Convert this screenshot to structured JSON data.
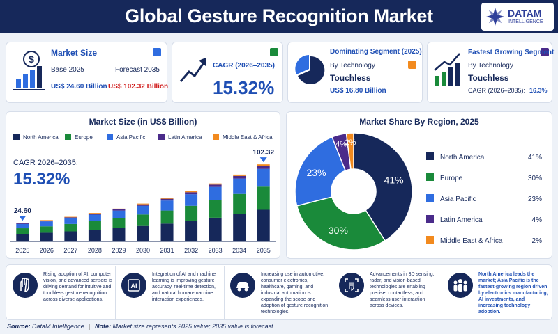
{
  "header": {
    "title": "Global Gesture Recognition Market",
    "logo_name": "DATAM",
    "logo_sub": "INTELLIGENCE"
  },
  "cards": [
    {
      "title": "Market Size",
      "base_label": "Base 2025",
      "forecast_label": "Forecast 2035",
      "base_value": "US$ 24.60 Billion",
      "forecast_value": "US$ 102.32 Billion"
    },
    {
      "title": "CAGR (2026–2035)",
      "value": "15.32%"
    },
    {
      "title": "Dominating Segment (2025)",
      "subtitle": "By Technology",
      "segment": "Touchless",
      "value": "US$ 16.80 Billion"
    },
    {
      "title": "Fastest Growing Segment",
      "subtitle": "By Technology",
      "segment": "Touchless",
      "cagr_label": "CAGR (2026–2035):",
      "cagr_value": "16.3%"
    }
  ],
  "chart_data": [
    {
      "type": "stacked-bar",
      "title": "Market Size (in US$ Billion)",
      "categories": [
        "2025",
        "2026",
        "2027",
        "2028",
        "2029",
        "2030",
        "2031",
        "2032",
        "2033",
        "2034",
        "2035"
      ],
      "series": [
        {
          "name": "North America",
          "color": "#16285a",
          "values": [
            10.1,
            11.6,
            13.4,
            15.5,
            17.8,
            20.6,
            23.7,
            27.3,
            31.5,
            36.4,
            42.0
          ]
        },
        {
          "name": "Europe",
          "color": "#1a8a3a",
          "values": [
            7.4,
            8.5,
            9.8,
            11.3,
            13.1,
            15.1,
            17.3,
            20.0,
            23.1,
            26.6,
            30.7
          ]
        },
        {
          "name": "Asia Pacific",
          "color": "#2f6de0",
          "values": [
            5.7,
            6.5,
            7.5,
            8.7,
            10.0,
            11.5,
            13.3,
            15.3,
            17.7,
            20.4,
            23.5
          ]
        },
        {
          "name": "Latin America",
          "color": "#4a2b8a",
          "values": [
            1.0,
            1.1,
            1.3,
            1.5,
            1.7,
            2.0,
            2.3,
            2.7,
            3.1,
            3.5,
            4.1
          ]
        },
        {
          "name": "Middle East & Africa",
          "color": "#f28a1e",
          "values": [
            0.5,
            0.6,
            0.7,
            0.8,
            0.9,
            1.0,
            1.2,
            1.3,
            1.5,
            1.8,
            2.0
          ]
        }
      ],
      "total_labels": [
        "24.60",
        null,
        null,
        null,
        null,
        null,
        null,
        null,
        null,
        null,
        "102.32"
      ],
      "cagr_label": "CAGR 2026–2035:",
      "cagr_value": "15.32%",
      "ylim": [
        0,
        120
      ]
    },
    {
      "type": "donut",
      "title": "Market Share By Region, 2025",
      "categories": [
        "North America",
        "Europe",
        "Asia Pacific",
        "Latin America",
        "Middle East & Africa"
      ],
      "values": [
        41,
        30,
        23,
        4,
        2
      ],
      "value_labels": [
        "41%",
        "30%",
        "23%",
        "4%",
        "2%"
      ],
      "colors": [
        "#16285a",
        "#1a8a3a",
        "#2f6de0",
        "#4a2b8a",
        "#f28a1e"
      ]
    }
  ],
  "insights": [
    {
      "text": "Rising adoption of AI, computer vision, and advanced sensors is driving demand for intuitive and touchless gesture recognition across diverse applications."
    },
    {
      "icon_label": "AI",
      "text": "Integration of AI and machine learning is improving gesture accuracy, real-time detection, and natural human-machine interaction experiences."
    },
    {
      "text": "Increasing use in automotive, consumer electronics, healthcare, gaming, and industrial automation is expanding the scope and adoption of gesture recognition technologies."
    },
    {
      "text": "Advancements in 3D sensing, radar, and vision-based technologies are enabling precise, contactless, and seamless user interaction across devices."
    },
    {
      "text": "North America leads the market; Asia Pacific is the fastest-growing region driven by electronics manufacturing, AI investments, and increasing technology adoption."
    }
  ],
  "footer": {
    "source_label": "Source:",
    "source": "DataM Intelligence",
    "note_label": "Note:",
    "note": "Market size represents 2025 value; 2035 value is forecast"
  }
}
